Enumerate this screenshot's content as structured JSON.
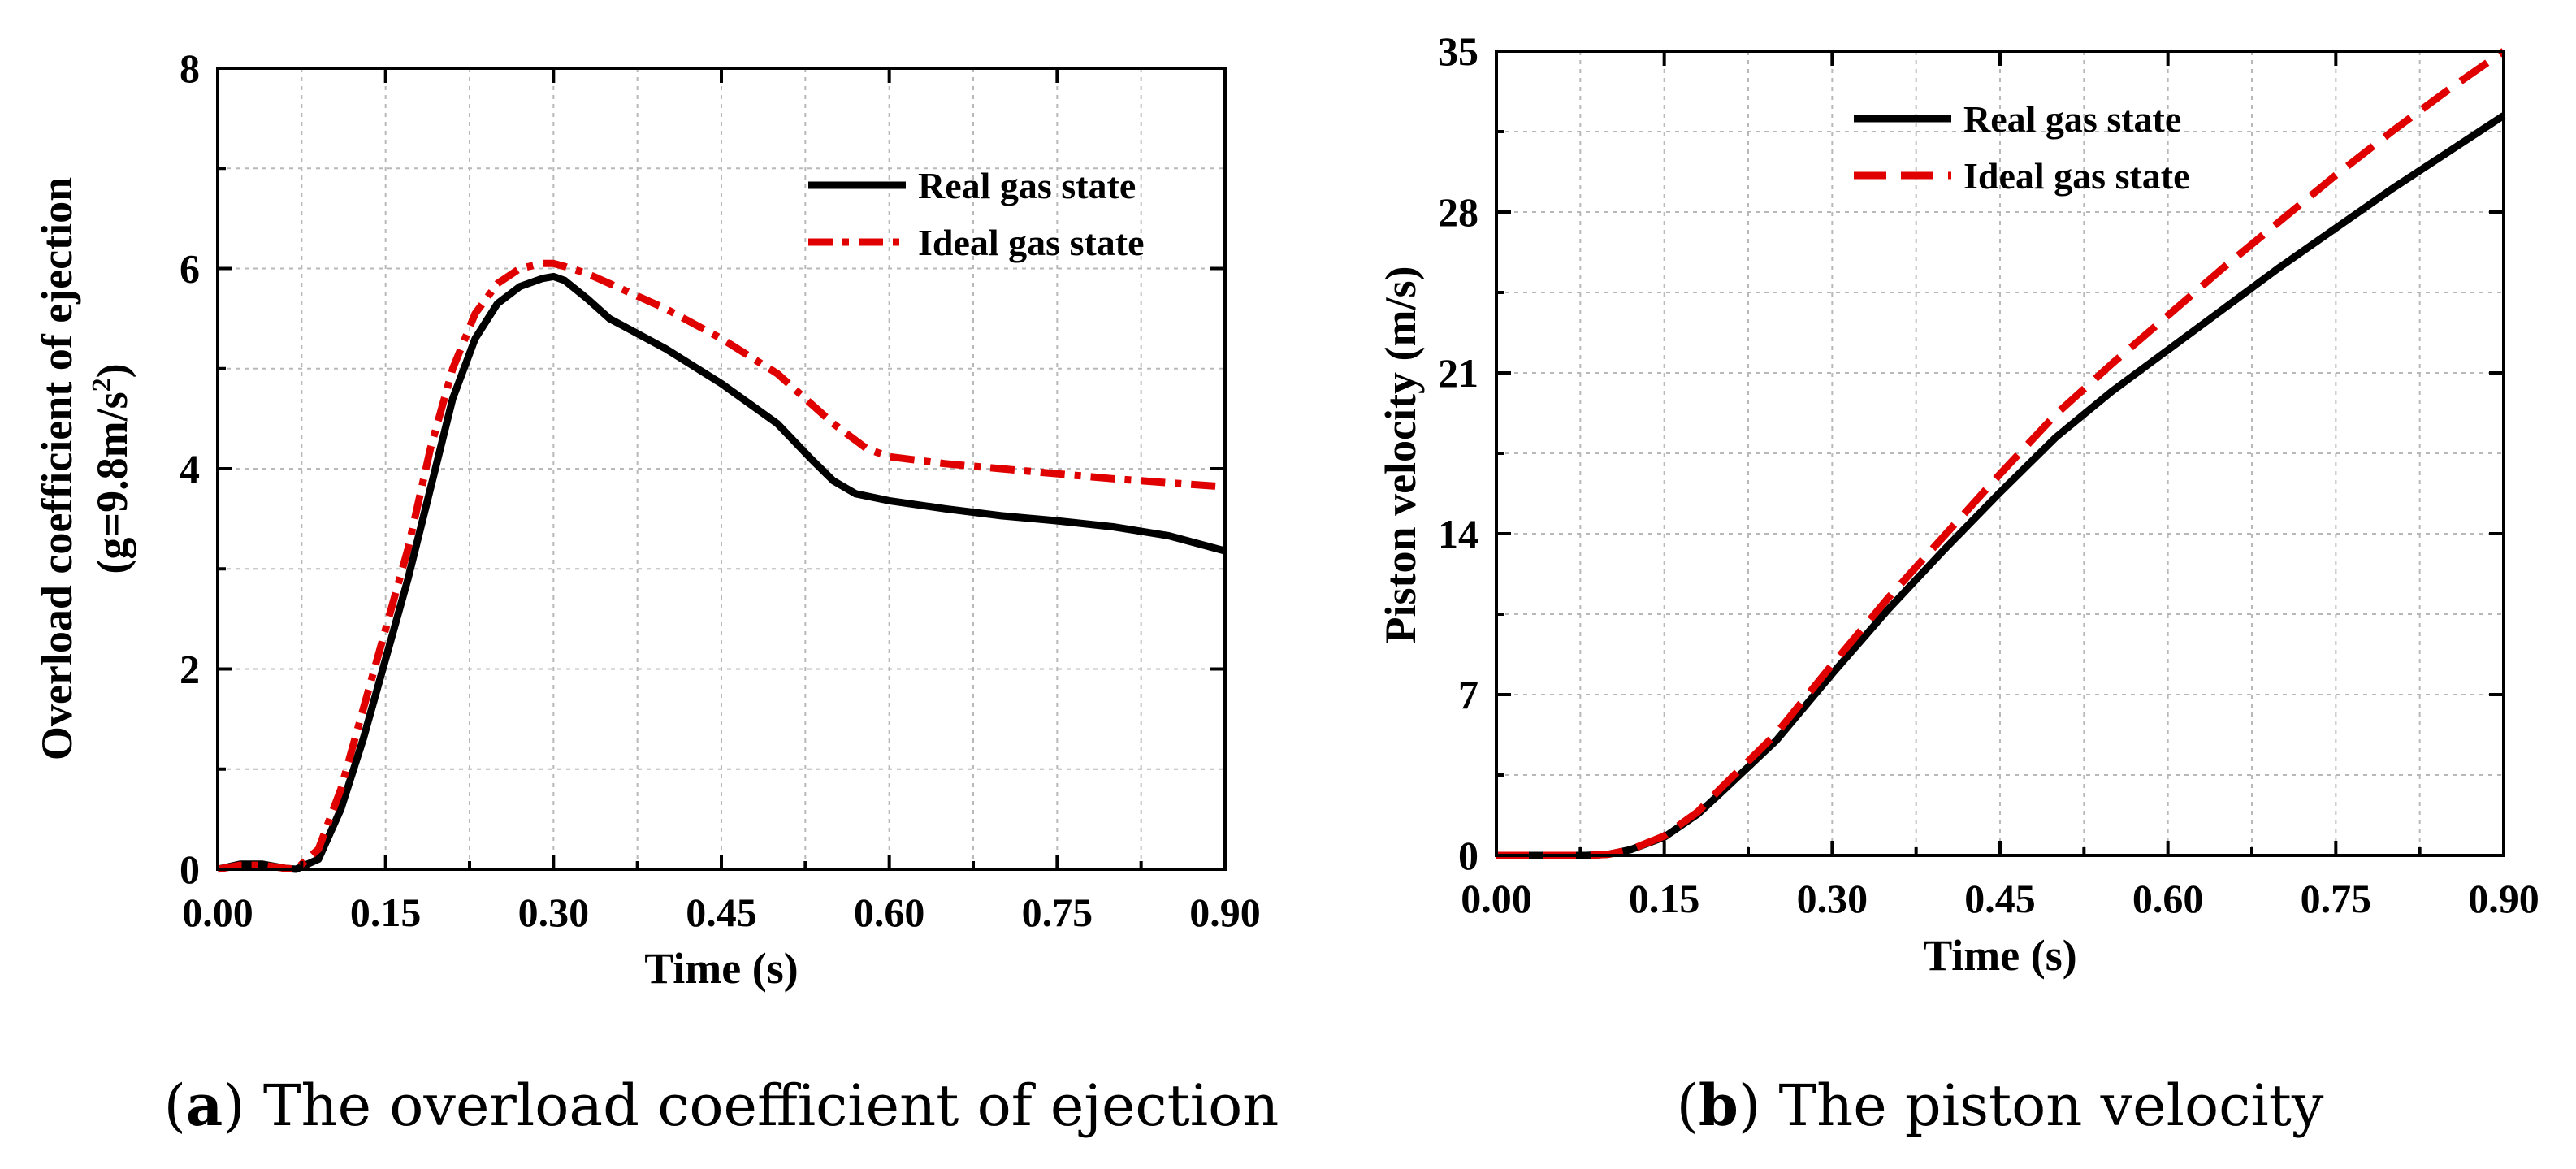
{
  "chart_data": [
    {
      "id": "a",
      "type": "line",
      "caption_letter": "a",
      "caption_text": "The overload coefficient of ejection",
      "xlabel": "Time (s)",
      "ylabel_line1": "Overload coefficient of ejection",
      "ylabel_line2_prefix": "(g=9.8m/s",
      "ylabel_line2_sup": "2",
      "ylabel_line2_suffix": ")",
      "xlim": [
        0,
        0.9
      ],
      "ylim": [
        0,
        8
      ],
      "xticks": [
        0.0,
        0.15,
        0.3,
        0.45,
        0.6,
        0.75,
        0.9
      ],
      "xtick_labels": [
        "0.00",
        "0.15",
        "0.30",
        "0.45",
        "0.60",
        "0.75",
        "0.90"
      ],
      "yticks": [
        0,
        2,
        4,
        6,
        8
      ],
      "ytick_labels": [
        "0",
        "2",
        "4",
        "6",
        "8"
      ],
      "grid": true,
      "legend_position": "top-right",
      "series": [
        {
          "name": "Real gas state",
          "color": "#000000",
          "style": "solid",
          "x": [
            0,
            0.02,
            0.04,
            0.06,
            0.07,
            0.09,
            0.11,
            0.13,
            0.15,
            0.17,
            0.19,
            0.21,
            0.23,
            0.25,
            0.27,
            0.29,
            0.3,
            0.31,
            0.33,
            0.35,
            0.4,
            0.45,
            0.5,
            0.53,
            0.55,
            0.57,
            0.6,
            0.65,
            0.7,
            0.75,
            0.8,
            0.85,
            0.9
          ],
          "y": [
            0,
            0.05,
            0.05,
            0.01,
            0,
            0.1,
            0.6,
            1.3,
            2.1,
            2.9,
            3.8,
            4.7,
            5.3,
            5.65,
            5.82,
            5.9,
            5.92,
            5.88,
            5.7,
            5.5,
            5.2,
            4.85,
            4.45,
            4.1,
            3.88,
            3.75,
            3.68,
            3.6,
            3.53,
            3.48,
            3.42,
            3.33,
            3.18
          ]
        },
        {
          "name": "Ideal gas state",
          "color": "#e00000",
          "style": "dashdot",
          "x": [
            0,
            0.02,
            0.04,
            0.06,
            0.07,
            0.09,
            0.11,
            0.13,
            0.15,
            0.17,
            0.19,
            0.21,
            0.23,
            0.25,
            0.27,
            0.29,
            0.3,
            0.31,
            0.33,
            0.35,
            0.4,
            0.45,
            0.5,
            0.55,
            0.58,
            0.6,
            0.65,
            0.7,
            0.75,
            0.8,
            0.85,
            0.9
          ],
          "y": [
            0,
            0.04,
            0.04,
            0.01,
            0,
            0.2,
            0.8,
            1.6,
            2.4,
            3.2,
            4.2,
            5.0,
            5.55,
            5.85,
            6.0,
            6.05,
            6.05,
            6.02,
            5.95,
            5.85,
            5.6,
            5.3,
            4.95,
            4.45,
            4.2,
            4.12,
            4.05,
            4.0,
            3.95,
            3.9,
            3.86,
            3.82
          ]
        }
      ]
    },
    {
      "id": "b",
      "type": "line",
      "caption_letter": "b",
      "caption_text": "The piston velocity",
      "xlabel": "Time (s)",
      "ylabel_line1": "Piston velocity (m/s)",
      "xlim": [
        0,
        0.9
      ],
      "ylim": [
        0,
        35
      ],
      "xticks": [
        0.0,
        0.15,
        0.3,
        0.45,
        0.6,
        0.75,
        0.9
      ],
      "xtick_labels": [
        "0.00",
        "0.15",
        "0.30",
        "0.45",
        "0.60",
        "0.75",
        "0.90"
      ],
      "yticks": [
        0,
        7,
        14,
        21,
        28,
        35
      ],
      "ytick_labels": [
        "0",
        "7",
        "14",
        "21",
        "28",
        "35"
      ],
      "grid": true,
      "legend_position": "top-center",
      "series": [
        {
          "name": "Real gas state",
          "color": "#000000",
          "style": "solid",
          "x": [
            0,
            0.05,
            0.08,
            0.1,
            0.12,
            0.15,
            0.18,
            0.2,
            0.25,
            0.3,
            0.35,
            0.4,
            0.45,
            0.5,
            0.55,
            0.6,
            0.65,
            0.7,
            0.75,
            0.8,
            0.85,
            0.9
          ],
          "y": [
            0,
            0,
            0,
            0.05,
            0.25,
            0.8,
            1.8,
            2.7,
            5.0,
            7.9,
            10.7,
            13.3,
            15.8,
            18.2,
            20.2,
            22.0,
            23.8,
            25.6,
            27.3,
            29.0,
            30.6,
            32.2
          ]
        },
        {
          "name": "Ideal gas state",
          "color": "#e00000",
          "style": "dashed",
          "x": [
            0,
            0.05,
            0.08,
            0.1,
            0.12,
            0.15,
            0.18,
            0.2,
            0.25,
            0.3,
            0.35,
            0.4,
            0.45,
            0.5,
            0.55,
            0.6,
            0.65,
            0.7,
            0.75,
            0.8,
            0.85,
            0.9
          ],
          "y": [
            0,
            0,
            0,
            0.05,
            0.25,
            0.85,
            1.9,
            2.9,
            5.3,
            8.3,
            11.2,
            13.9,
            16.6,
            19.2,
            21.4,
            23.5,
            25.6,
            27.6,
            29.6,
            31.5,
            33.3,
            35.0
          ]
        }
      ]
    }
  ]
}
